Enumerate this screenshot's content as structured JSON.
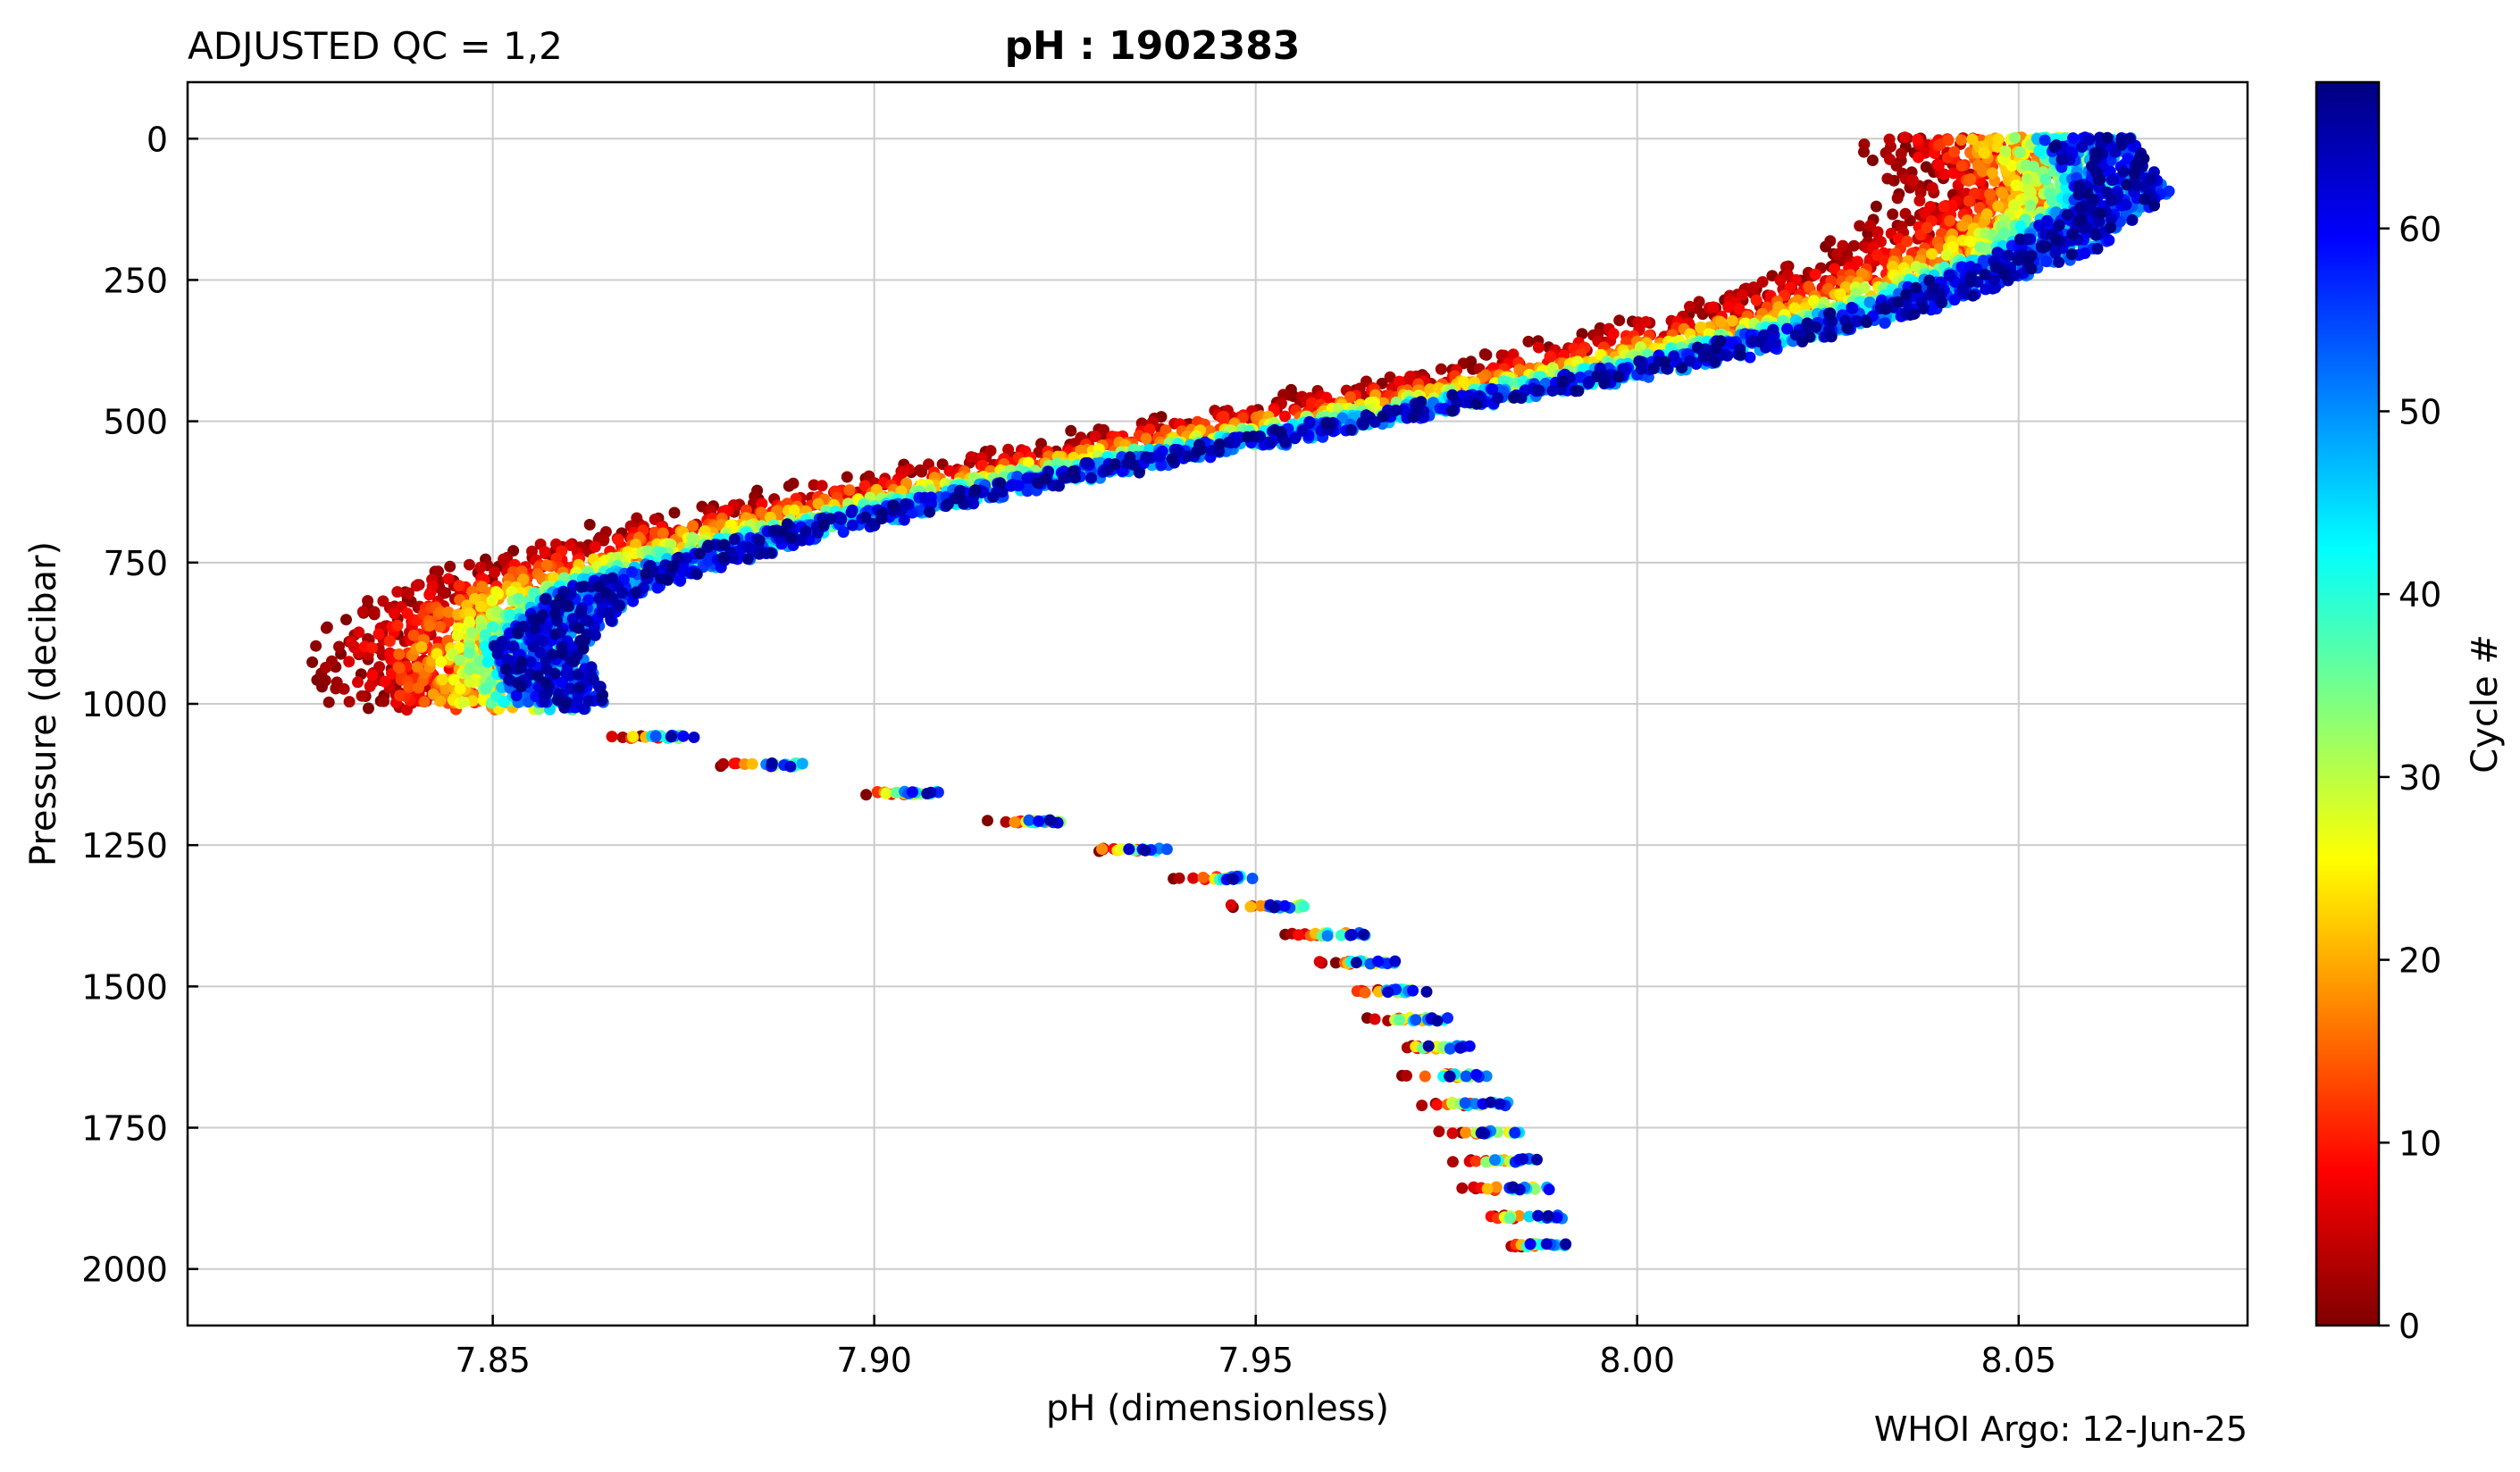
{
  "header": {
    "left_title": "ADJUSTED QC = 1,2",
    "center_title": "pH : 1902383",
    "footer_credit": "WHOI Argo: 12-Jun-25"
  },
  "chart_data": {
    "type": "scatter",
    "xlabel": "pH  (dimensionless)",
    "ylabel": "Pressure  (decibar)",
    "xlim": [
      7.81,
      8.08
    ],
    "ylim": [
      2100,
      -100
    ],
    "y_inverted": true,
    "x_ticks": [
      7.85,
      7.9,
      7.95,
      8.0,
      8.05
    ],
    "x_tick_labels": [
      "7.85",
      "7.90",
      "7.95",
      "8.00",
      "8.05"
    ],
    "y_ticks": [
      0,
      250,
      500,
      750,
      1000,
      1250,
      1500,
      1750,
      2000
    ],
    "y_tick_labels": [
      "0",
      "250",
      "500",
      "750",
      "1000",
      "1250",
      "1500",
      "1750",
      "2000"
    ],
    "grid": true,
    "colorbar": {
      "label": "Cycle #",
      "colormap": "jet_reversed",
      "range": [
        0,
        68
      ],
      "ticks": [
        0,
        10,
        20,
        30,
        40,
        50,
        60
      ],
      "tick_labels": [
        "0",
        "10",
        "20",
        "30",
        "40",
        "50",
        "60"
      ],
      "colors_bottom_to_top": [
        "#800000",
        "#ff0000",
        "#ff8000",
        "#ffff00",
        "#80ff80",
        "#00ffff",
        "#0080ff",
        "#0000ff",
        "#000080"
      ]
    },
    "profile_shape": {
      "description_points": [
        {
          "pressure": 0,
          "ph": 8.055
        },
        {
          "pressure": 100,
          "ph": 8.06
        },
        {
          "pressure": 200,
          "ph": 8.05
        },
        {
          "pressure": 300,
          "ph": 8.03
        },
        {
          "pressure": 400,
          "ph": 8.0
        },
        {
          "pressure": 500,
          "ph": 7.96
        },
        {
          "pressure": 600,
          "ph": 7.92
        },
        {
          "pressure": 700,
          "ph": 7.885
        },
        {
          "pressure": 800,
          "ph": 7.86
        },
        {
          "pressure": 900,
          "ph": 7.852
        },
        {
          "pressure": 1000,
          "ph": 7.855
        },
        {
          "pressure": 1100,
          "ph": 7.885
        },
        {
          "pressure": 1200,
          "ph": 7.92
        },
        {
          "pressure": 1300,
          "ph": 7.945
        },
        {
          "pressure": 1400,
          "ph": 7.96
        },
        {
          "pressure": 1500,
          "ph": 7.968
        },
        {
          "pressure": 1600,
          "ph": 7.974
        },
        {
          "pressure": 1700,
          "ph": 7.979
        },
        {
          "pressure": 1800,
          "ph": 7.983
        },
        {
          "pressure": 1900,
          "ph": 7.986
        },
        {
          "pressure": 2000,
          "ph": 7.989
        }
      ],
      "cycle_offsets": [
        {
          "cycle": 0,
          "shift": -0.022
        },
        {
          "cycle": 10,
          "shift": -0.012
        },
        {
          "cycle": 20,
          "shift": -0.006
        },
        {
          "cycle": 35,
          "shift": 0.0
        },
        {
          "cycle": 50,
          "shift": 0.004
        },
        {
          "cycle": 68,
          "shift": 0.004
        }
      ]
    }
  }
}
